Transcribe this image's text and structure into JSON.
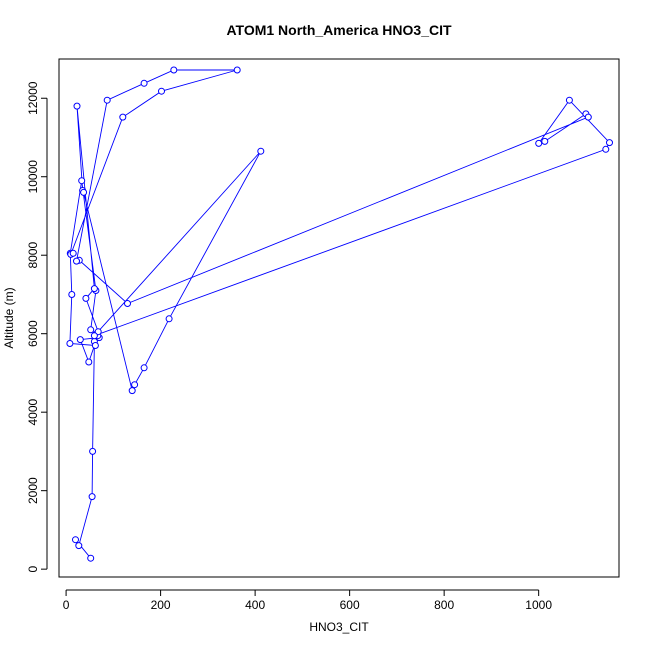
{
  "chart_data": {
    "type": "line",
    "title": "ATOM1 North_America HNO3_CIT",
    "xlabel": "HNO3_CIT",
    "ylabel": "Altitude (m)",
    "xlim": [
      -15,
      1170
    ],
    "ylim": [
      -200,
      13000
    ],
    "xticks": [
      0,
      200,
      400,
      600,
      800,
      1000
    ],
    "yticks": [
      0,
      2000,
      4000,
      6000,
      8000,
      10000,
      12000
    ],
    "grid": false,
    "legend": "none",
    "colors": {
      "series": "#0000ff",
      "axes": "#000000"
    },
    "series": [
      {
        "marker": "open-circle",
        "x": [
          52,
          20,
          27,
          55,
          56,
          60,
          65,
          70,
          30,
          48,
          67,
          52,
          63,
          33,
          9,
          12,
          8,
          62,
          68,
          42,
          60,
          23,
          35,
          37,
          140,
          145,
          165,
          218,
          412,
          60,
          1142,
          1150,
          1065,
          1000,
          1013,
          1100,
          1105,
          130,
          28,
          22,
          87,
          165,
          228,
          362,
          202,
          120,
          10,
          15
        ],
        "y": [
          280,
          750,
          600,
          1850,
          3000,
          5800,
          6000,
          5900,
          5850,
          5280,
          5950,
          6100,
          7100,
          9900,
          8050,
          7000,
          5750,
          5700,
          6050,
          6900,
          7150,
          11800,
          9650,
          9600,
          4550,
          4700,
          5130,
          6380,
          10650,
          5950,
          10700,
          10870,
          11950,
          10850,
          10900,
          11600,
          11520,
          6770,
          7870,
          7850,
          11950,
          12380,
          12720,
          12720,
          12180,
          11520,
          8020,
          8050
        ]
      }
    ]
  }
}
